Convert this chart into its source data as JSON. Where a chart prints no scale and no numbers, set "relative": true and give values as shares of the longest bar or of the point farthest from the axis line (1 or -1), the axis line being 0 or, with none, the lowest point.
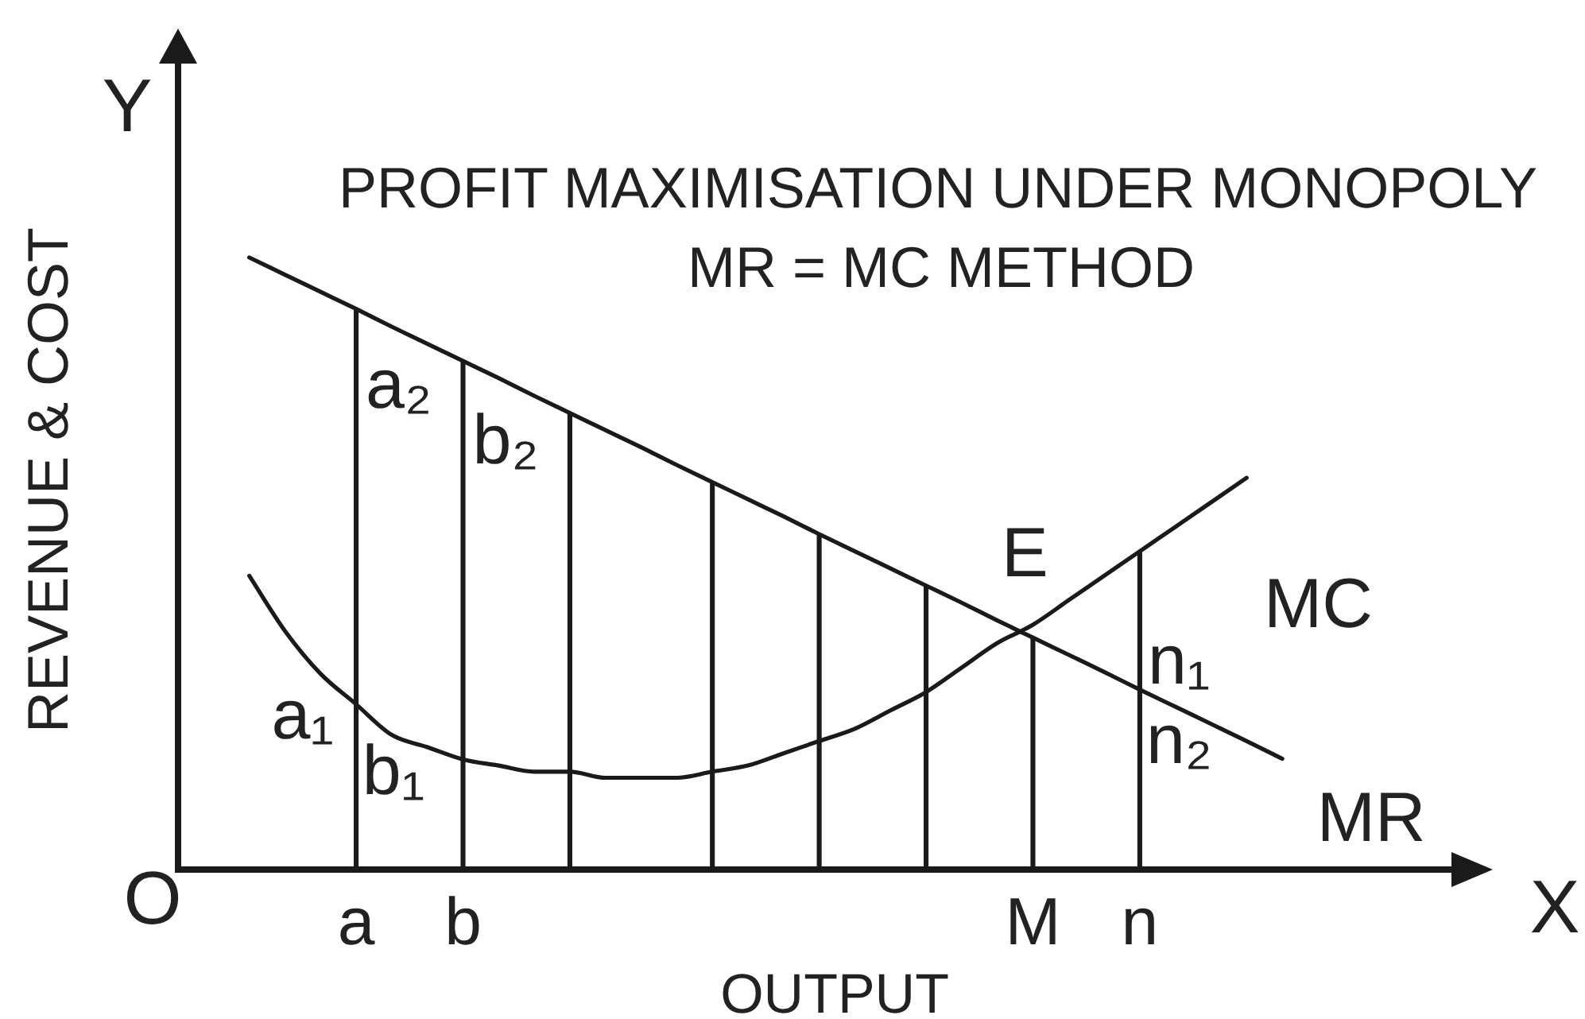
{
  "chart_data": {
    "type": "line",
    "title": "PROFIT MAXIMISATION UNDER MONOPOLY",
    "subtitle": "MR = MC METHOD",
    "xlabel": "OUTPUT",
    "ylabel": "REVENUE & COST",
    "relative": true,
    "marker": "none",
    "legend": false,
    "categories": [
      null,
      null,
      null,
      null,
      null,
      "a",
      null,
      null,
      "b",
      null,
      null,
      null,
      null,
      null,
      null,
      null,
      null,
      null,
      null,
      null,
      null,
      null,
      null,
      null,
      "M",
      null,
      null,
      "n",
      null,
      null,
      null,
      null,
      null,
      null,
      null,
      null,
      null,
      null
    ],
    "series": [
      {
        "name": "MR",
        "color": "#1a1a1a",
        "values": [
          null,
          null,
          1,
          0.972,
          0.944,
          0.916,
          0.887,
          0.859,
          0.831,
          0.803,
          0.774,
          0.746,
          0.718,
          0.69,
          0.661,
          0.633,
          0.605,
          0.577,
          0.548,
          0.52,
          0.492,
          0.464,
          0.436,
          0.407,
          0.379,
          0.351,
          0.323,
          0.294,
          0.266,
          0.238,
          0.21,
          0.181,
          null,
          null,
          null,
          null,
          null,
          null
        ]
      },
      {
        "name": "MC",
        "color": "#1a1a1a",
        "values": [
          null,
          null,
          0.48,
          0.39,
          0.32,
          0.27,
          0.22,
          0.2,
          0.18,
          0.17,
          0.16,
          0.16,
          0.15,
          0.15,
          0.15,
          0.16,
          0.17,
          0.19,
          0.21,
          0.23,
          0.26,
          0.29,
          0.33,
          0.37,
          0.4,
          0.44,
          0.48,
          0.52,
          0.56,
          0.6,
          0.64,
          null,
          null,
          null,
          null,
          null,
          null,
          null
        ]
      },
      {
        "type": "bar",
        "color": "#1a1a1a",
        "values": [
          null,
          null,
          null,
          null,
          null,
          0.916,
          null,
          null,
          0.831,
          null,
          null,
          0.746,
          null,
          null,
          null,
          0.633,
          null,
          null,
          0.548,
          null,
          null,
          0.464,
          null,
          null,
          0.379,
          null,
          null,
          0.52,
          null,
          null,
          null,
          null,
          null,
          null,
          null,
          null,
          null,
          null
        ]
      }
    ],
    "annotations": [
      "Y",
      "X",
      "O",
      {
        "text": "a₂",
        "x": "a",
        "y": 0.78
      },
      {
        "text": "b₂",
        "x": "b",
        "y": 0.7
      },
      {
        "text": "a₁",
        "x": "a",
        "y": 0.24
      },
      {
        "text": "b₁",
        "x": "b",
        "y": 0.16
      },
      {
        "text": "E",
        "x": "M",
        "y": 0.39
      },
      {
        "text": "n₁",
        "x": "n",
        "y": 0.33
      },
      {
        "text": "n₂",
        "x": "n",
        "y": 0.2
      }
    ]
  }
}
